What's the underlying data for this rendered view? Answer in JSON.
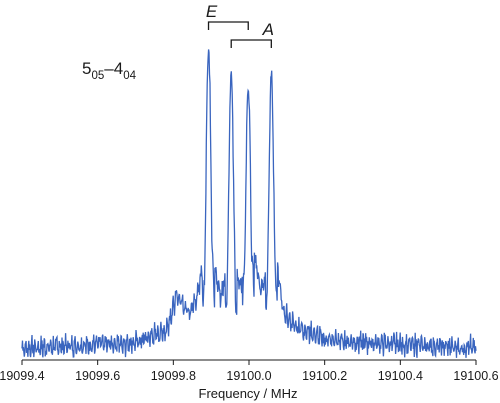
{
  "chart_data": {
    "type": "line",
    "title": "",
    "xlabel": "Frequency / MHz",
    "ylabel": "",
    "xlim": [
      19099.4,
      19100.6
    ],
    "ylim": [
      0,
      1
    ],
    "grid": false,
    "x_ticks": [
      "19099.4",
      "19099.6",
      "19099.8",
      "19100.0",
      "19100.2",
      "19100.4",
      "19100.6"
    ],
    "line_color": "#3a65bf",
    "transition_label": {
      "main": "5",
      "sub1": "05",
      "dash": "–",
      "main2": "4",
      "sub2": "04"
    },
    "annotations": [
      {
        "label": "E",
        "x_from": 19099.893,
        "x_to": 19099.998
      },
      {
        "label": "A",
        "x_from": 19099.953,
        "x_to": 19100.059
      }
    ],
    "peaks": [
      {
        "x": 19099.893,
        "y": 0.97
      },
      {
        "x": 19099.953,
        "y": 0.89
      },
      {
        "x": 19099.998,
        "y": 0.85
      },
      {
        "x": 19100.059,
        "y": 0.88
      }
    ],
    "series": [
      {
        "x": [
          19099.4,
          19099.55,
          19099.7,
          19099.78,
          19099.81,
          19099.84,
          19099.86,
          19099.88,
          19099.893,
          19099.91,
          19099.925,
          19099.94,
          19099.953,
          19099.965,
          19099.98,
          19099.998,
          19100.015,
          19100.03,
          19100.045,
          19100.059,
          19100.075,
          19100.09,
          19100.12,
          19100.2,
          19100.3,
          19100.45,
          19100.6
        ],
        "y": [
          0.04,
          0.05,
          0.06,
          0.1,
          0.22,
          0.17,
          0.2,
          0.34,
          0.97,
          0.3,
          0.22,
          0.3,
          0.89,
          0.3,
          0.24,
          0.85,
          0.35,
          0.24,
          0.3,
          0.88,
          0.32,
          0.16,
          0.12,
          0.07,
          0.06,
          0.05,
          0.04
        ]
      }
    ]
  }
}
